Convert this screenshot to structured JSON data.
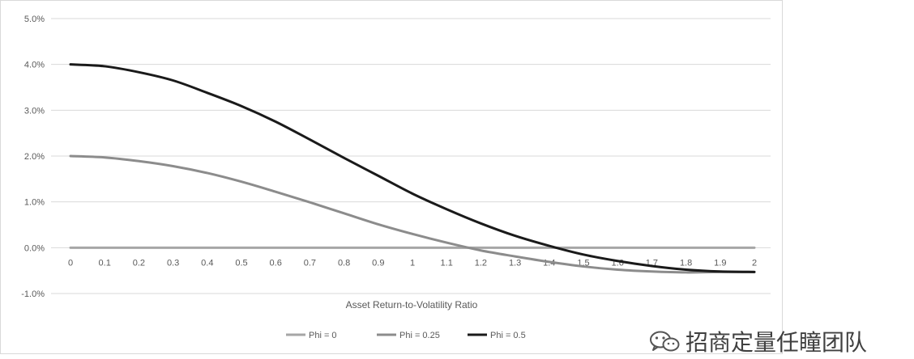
{
  "chart_data": {
    "type": "line",
    "xlabel": "Asset Return-to-Volatility Ratio",
    "ylabel": "",
    "title": "",
    "ylim": [
      -0.01,
      0.05
    ],
    "y_ticks": [
      "5.0%",
      "4.0%",
      "3.0%",
      "2.0%",
      "1.0%",
      "0.0%",
      "-1.0%"
    ],
    "y_tick_values": [
      0.05,
      0.04,
      0.03,
      0.02,
      0.01,
      0.0,
      -0.01
    ],
    "grid": "horizontal",
    "legend_position": "bottom",
    "x": [
      0,
      0.1,
      0.2,
      0.3,
      0.4,
      0.5,
      0.6,
      0.7,
      0.8,
      0.9,
      1,
      1.1,
      1.2,
      1.3,
      1.4,
      1.5,
      1.6,
      1.7,
      1.8,
      1.9,
      2
    ],
    "x_tick_labels": [
      "0",
      "0.1",
      "0.2",
      "0.3",
      "0.4",
      "0.5",
      "0.6",
      "0.7",
      "0.8",
      "0.9",
      "1",
      "1.1",
      "1.2",
      "1.3",
      "1.4",
      "1.5",
      "1.6",
      "1.7",
      "1.8",
      "1.9",
      "2"
    ],
    "series": [
      {
        "name": "Phi = 0",
        "color": "#a6a6a6",
        "values": [
          0,
          0,
          0,
          0,
          0,
          0,
          0,
          0,
          0,
          0,
          0,
          0,
          0,
          0,
          0,
          0,
          0,
          0,
          0,
          0,
          0
        ]
      },
      {
        "name": "Phi = 0.25",
        "color": "#8c8c8c",
        "values": [
          0.02,
          0.0197,
          0.0189,
          0.0178,
          0.0163,
          0.0144,
          0.0122,
          0.0099,
          0.0075,
          0.0051,
          0.003,
          0.0011,
          -0.0006,
          -0.0019,
          -0.0031,
          -0.0041,
          -0.0048,
          -0.0052,
          -0.0054,
          -0.0053,
          -0.0053
        ]
      },
      {
        "name": "Phi = 0.5",
        "color": "#1a1a1a",
        "values": [
          0.04,
          0.0396,
          0.0383,
          0.0365,
          0.0338,
          0.0309,
          0.0275,
          0.0236,
          0.0196,
          0.0157,
          0.0118,
          0.0084,
          0.0053,
          0.0026,
          0.0004,
          -0.0015,
          -0.0029,
          -0.004,
          -0.0048,
          -0.0052,
          -0.0053
        ]
      }
    ]
  },
  "watermark": {
    "text": "招商定量任瞳团队",
    "icon": "wechat-icon"
  }
}
